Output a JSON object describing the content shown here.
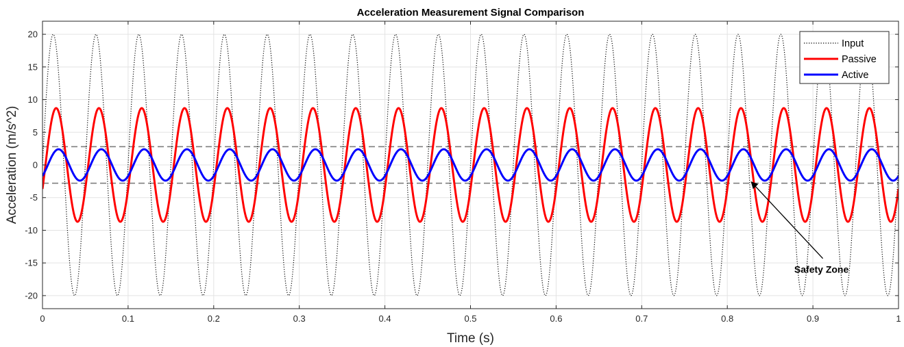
{
  "chart_data": {
    "type": "line",
    "title": "Acceleration Measurement Signal Comparison",
    "xlabel": "Time (s)",
    "ylabel": "Acceleration (m/s^2)",
    "xlim": [
      0,
      1
    ],
    "ylim": [
      -22,
      22
    ],
    "xticks": [
      0,
      0.1,
      0.2,
      0.3,
      0.4,
      0.5,
      0.6,
      0.7,
      0.8,
      0.9,
      1
    ],
    "xtick_labels": [
      "0",
      "0.1",
      "0.2",
      "0.3",
      "0.4",
      "0.5",
      "0.6",
      "0.7",
      "0.8",
      "0.9",
      "1"
    ],
    "yticks": [
      20,
      15,
      10,
      5,
      0,
      -5,
      -10,
      -15,
      -20
    ],
    "ytick_labels": [
      "20",
      "15",
      "10",
      "5",
      "0",
      "-5",
      "-10",
      "-15",
      "-20"
    ],
    "grid": true,
    "legend_position": "top-right",
    "frequency_hz": 20,
    "series": [
      {
        "name": "Input",
        "amplitude": 20,
        "phase_deg": 0,
        "color": "#000000",
        "style": "dotted"
      },
      {
        "name": "Passive",
        "amplitude": 8.7,
        "phase_deg": -25,
        "color": "#ff0000",
        "style": "solid"
      },
      {
        "name": "Active",
        "amplitude": 2.4,
        "phase_deg": -45,
        "color": "#0000ff",
        "style": "solid"
      }
    ],
    "reference_lines": [
      {
        "y": 2.8,
        "color": "#7f7f7f",
        "style": "dashed"
      },
      {
        "y": -2.8,
        "color": "#7f7f7f",
        "style": "dashed"
      }
    ],
    "annotation": {
      "text": "Safety Zone",
      "arrow_to": [
        0.828,
        -2.6
      ],
      "text_at": [
        0.91,
        -16
      ]
    }
  }
}
